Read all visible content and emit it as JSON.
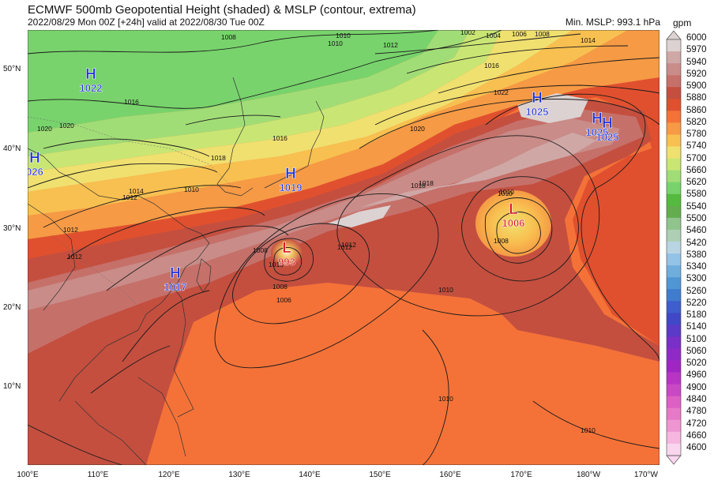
{
  "header": {
    "title": "ECMWF 500mb Geopotential Height (shaded) & MSLP (contour, extrema)",
    "subtitle": "2022/08/29 Mon 00Z [+24h] valid at 2022/08/30 Tue 00Z",
    "min_mslp": "Min. MSLP: 993.1 hPa",
    "unit": "gpm"
  },
  "colorbar": {
    "levels": [
      "6000",
      "5970",
      "5940",
      "5920",
      "5900",
      "5880",
      "5860",
      "5820",
      "5780",
      "5740",
      "5700",
      "5660",
      "5620",
      "5580",
      "5540",
      "5500",
      "5460",
      "5420",
      "5380",
      "5340",
      "5300",
      "5260",
      "5220",
      "5180",
      "5140",
      "5100",
      "5060",
      "5020",
      "4960",
      "4900",
      "4840",
      "4780",
      "4720",
      "4660",
      "4600"
    ],
    "colors": [
      "#dcd2d2",
      "#cfa8a6",
      "#c98c88",
      "#c6706a",
      "#c44f3f",
      "#e0502e",
      "#f47238",
      "#f69a45",
      "#f8c050",
      "#f0e070",
      "#c9e674",
      "#a1dd76",
      "#78d36c",
      "#55bb3e",
      "#63ad4f",
      "#8fc58d",
      "#afcfb5",
      "#b9d5e4",
      "#94c3e8",
      "#6faedc",
      "#5196d4",
      "#3f7ccc",
      "#3d5ecc",
      "#4048c8",
      "#5a3ac6",
      "#7a2fc8",
      "#8f2ac6",
      "#a026c4",
      "#b835c4",
      "#c948c4",
      "#dd60c4",
      "#e77ac8",
      "#ef96d2",
      "#f6b6e0",
      "#f9d6ee"
    ]
  },
  "map": {
    "lat_labels": [
      "50°N",
      "40°N",
      "30°N",
      "20°N",
      "10°N"
    ],
    "lon_labels": [
      "100°E",
      "110°E",
      "120°E",
      "130°E",
      "140°E",
      "150°E",
      "160°E",
      "170°E",
      "180°W",
      "170°W"
    ],
    "isobar_labels": [
      "1010",
      "1012",
      "1008",
      "1016",
      "1018",
      "1020",
      "1002",
      "1004",
      "1006",
      "1008",
      "1014",
      "1016",
      "1020",
      "1022",
      "1018",
      "1020",
      "1014",
      "1012",
      "1010",
      "1008",
      "1012",
      "1010",
      "1018",
      "1008",
      "1010",
      "1012",
      "1008",
      "1006",
      "1012",
      "1010",
      "1010",
      "1012",
      "1016",
      "1010",
      "1010",
      "1010"
    ],
    "highs": [
      {
        "letter": "H",
        "value": "1022"
      },
      {
        "letter": "H",
        "value": "026"
      },
      {
        "letter": "H",
        "value": "1019"
      },
      {
        "letter": "H",
        "value": "1017"
      },
      {
        "letter": "H",
        "value": "1025"
      },
      {
        "letter": "H",
        "value": "1025"
      },
      {
        "letter": "H",
        "value": "1025"
      }
    ],
    "lows": [
      {
        "letter": "L",
        "value": "993"
      },
      {
        "letter": "L",
        "value": "1006"
      }
    ],
    "colors": {
      "high": "#1d2fd6",
      "low": "#d8141e",
      "isobar": "#1a1a1a",
      "border": "#555555"
    }
  }
}
